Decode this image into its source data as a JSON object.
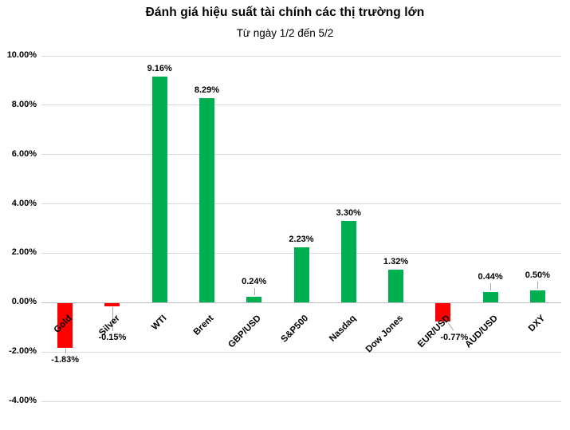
{
  "chart_data": {
    "type": "bar",
    "title": "Đánh giá hiệu suất tài chính các thị trường lớn",
    "subtitle": "Từ ngày 1/2 đến 5/2",
    "categories": [
      "Gold",
      "Silver",
      "WTI",
      "Brent",
      "GBP/USD",
      "S&P500",
      "Nasdaq",
      "Dow Jones",
      "EUR/USD",
      "AUD/USD",
      "DXY"
    ],
    "values": [
      -1.83,
      -0.15,
      9.16,
      8.29,
      0.24,
      2.23,
      3.3,
      1.32,
      -0.77,
      0.44,
      0.5
    ],
    "value_labels": [
      "-1.83%",
      "-0.15%",
      "9.16%",
      "8.29%",
      "0.24%",
      "2.23%",
      "3.30%",
      "1.32%",
      "-0.77%",
      "0.44%",
      "0.50%"
    ],
    "xlabel": "",
    "ylabel": "",
    "ylim": [
      -4,
      10
    ],
    "grid": true,
    "legend": "none",
    "y_axis": {
      "ticks": [
        {
          "value": 10,
          "label": "10.00%"
        },
        {
          "value": 8,
          "label": "8.00%"
        },
        {
          "value": 6,
          "label": "6.00%"
        },
        {
          "value": 4,
          "label": "4.00%"
        },
        {
          "value": 2,
          "label": "2.00%"
        },
        {
          "value": 0,
          "label": "0.00%"
        },
        {
          "value": -2,
          "label": "-2.00%"
        },
        {
          "value": -4,
          "label": "-4.00%"
        }
      ]
    },
    "colors": {
      "positive": "#00B050",
      "negative": "#FF0000",
      "gridline": "#D9D9D9",
      "axis": "#BFBFBF",
      "leader": "#A6A6A6",
      "text": "#000000"
    }
  }
}
